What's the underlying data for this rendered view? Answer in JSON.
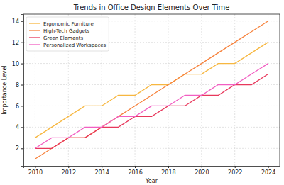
{
  "chart_data": {
    "type": "line",
    "title": "Trends in Office Design Elements Over Time",
    "x_label": "Year",
    "y_label": "Importance Level",
    "x": [
      2010,
      2011,
      2012,
      2013,
      2014,
      2015,
      2016,
      2017,
      2018,
      2019,
      2020,
      2021,
      2022,
      2023,
      2024
    ],
    "series": [
      {
        "name": "Ergonomic Furniture",
        "color": "#f7b740",
        "values": [
          3,
          4,
          5,
          6,
          6,
          7,
          7,
          8,
          8,
          9,
          9,
          10,
          10,
          11,
          12
        ]
      },
      {
        "name": "High-Tech Gadgets",
        "color": "#f7823c",
        "values": [
          1,
          2,
          3,
          3,
          4,
          5,
          6,
          7,
          8,
          9,
          10,
          11,
          12,
          13,
          14
        ]
      },
      {
        "name": "Green Elements",
        "color": "#e8385c",
        "values": [
          2,
          2,
          3,
          3,
          4,
          4,
          5,
          5,
          6,
          6,
          7,
          7,
          8,
          8,
          9
        ]
      },
      {
        "name": "Personalized Workspaces",
        "color": "#f25fc2",
        "values": [
          2,
          3,
          3,
          4,
          4,
          5,
          5,
          6,
          6,
          7,
          7,
          8,
          8,
          9,
          10
        ]
      }
    ],
    "xlim": [
      2009.3,
      2024.7
    ],
    "xticks": [
      2010,
      2012,
      2014,
      2016,
      2018,
      2020,
      2022,
      2024
    ],
    "ylim": [
      0.35,
      14.65
    ],
    "yticks": [
      2,
      4,
      6,
      8,
      10,
      12,
      14
    ],
    "grid": true,
    "legend": "upper left"
  }
}
